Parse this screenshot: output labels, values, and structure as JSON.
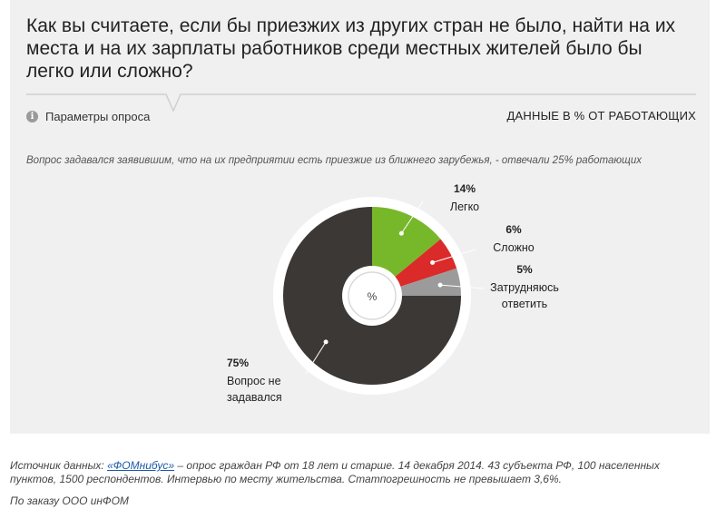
{
  "header": {
    "title": "Как вы считаете, если бы приезжих из других стран не было, найти на их места и на их зарплаты работников среди местных жителей было бы легко или сложно?",
    "params_label": "Параметры опроса",
    "units": "ДАННЫЕ В % ОТ РАБОТАЮЩИХ",
    "info_icon": "i"
  },
  "subtitle": "Вопрос задавался заявившим, что на их предприятии есть приезжие из ближнего зарубежья, - отвечали 25% работающих",
  "chart_data": {
    "type": "pie",
    "center_label": "%",
    "slices": [
      {
        "label_lines": [
          "Легко"
        ],
        "value": 14,
        "value_label": "14%",
        "color": "#77b82a"
      },
      {
        "label_lines": [
          "Сложно"
        ],
        "value": 6,
        "value_label": "6%",
        "color": "#db2a2a"
      },
      {
        "label_lines": [
          "Затрудняюсь",
          "ответить"
        ],
        "value": 5,
        "value_label": "5%",
        "color": "#9b9b9b"
      },
      {
        "label_lines": [
          "Вопрос не",
          "задавался"
        ],
        "value": 75,
        "value_label": "75%",
        "color": "#3c3835"
      }
    ]
  },
  "footer": {
    "source_prefix": "Источник данных: ",
    "source_link": "«ФОМнибус»",
    "source_text": " – опрос граждан РФ от 18 лет и старше. 14 декабря 2014. 43 субъекта РФ, 100 населенных пунктов, 1500 респондентов. Интервью по месту жительства. Статпогрешность не превышает 3,6%.",
    "order_text": "По заказу ООО инФОМ"
  }
}
